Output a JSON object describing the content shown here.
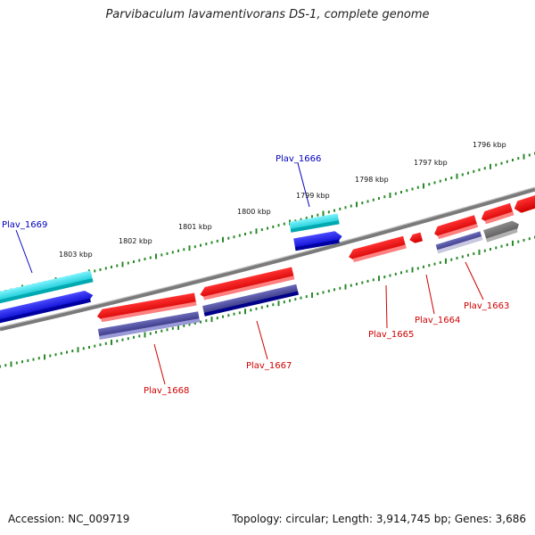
{
  "title": "Parvibaculum lavamentivorans DS-1, complete genome",
  "footer": {
    "accession": "Accession: NC_009719",
    "topology": "Topology: circular; Length: 3,914,745 bp; Genes: 3,686"
  },
  "colors": {
    "backbone": "#7a7a7a",
    "forward_gene": "#0000e0",
    "forward_rna_like": "#00c8d0",
    "reverse_gene": "#e00000",
    "reverse_cds": "#3a3a9a",
    "pseudo": "#707070",
    "label_forward": "#0000c0",
    "label_reverse": "#d00000",
    "tick": "#2a8a2a"
  },
  "scale_labels": [
    "1803 kbp",
    "1802 kbp",
    "1801 kbp",
    "1800 kbp",
    "1799 kbp",
    "1798 kbp",
    "1797 kbp",
    "1796 kbp"
  ],
  "gene_labels": [
    {
      "text": "Plav_1669",
      "strand": "forward"
    },
    {
      "text": "Plav_1666",
      "strand": "forward"
    },
    {
      "text": "Plav_1668",
      "strand": "reverse"
    },
    {
      "text": "Plav_1667",
      "strand": "reverse"
    },
    {
      "text": "Plav_1665",
      "strand": "reverse"
    },
    {
      "text": "Plav_1664",
      "strand": "reverse"
    },
    {
      "text": "Plav_1663",
      "strand": "reverse"
    }
  ]
}
